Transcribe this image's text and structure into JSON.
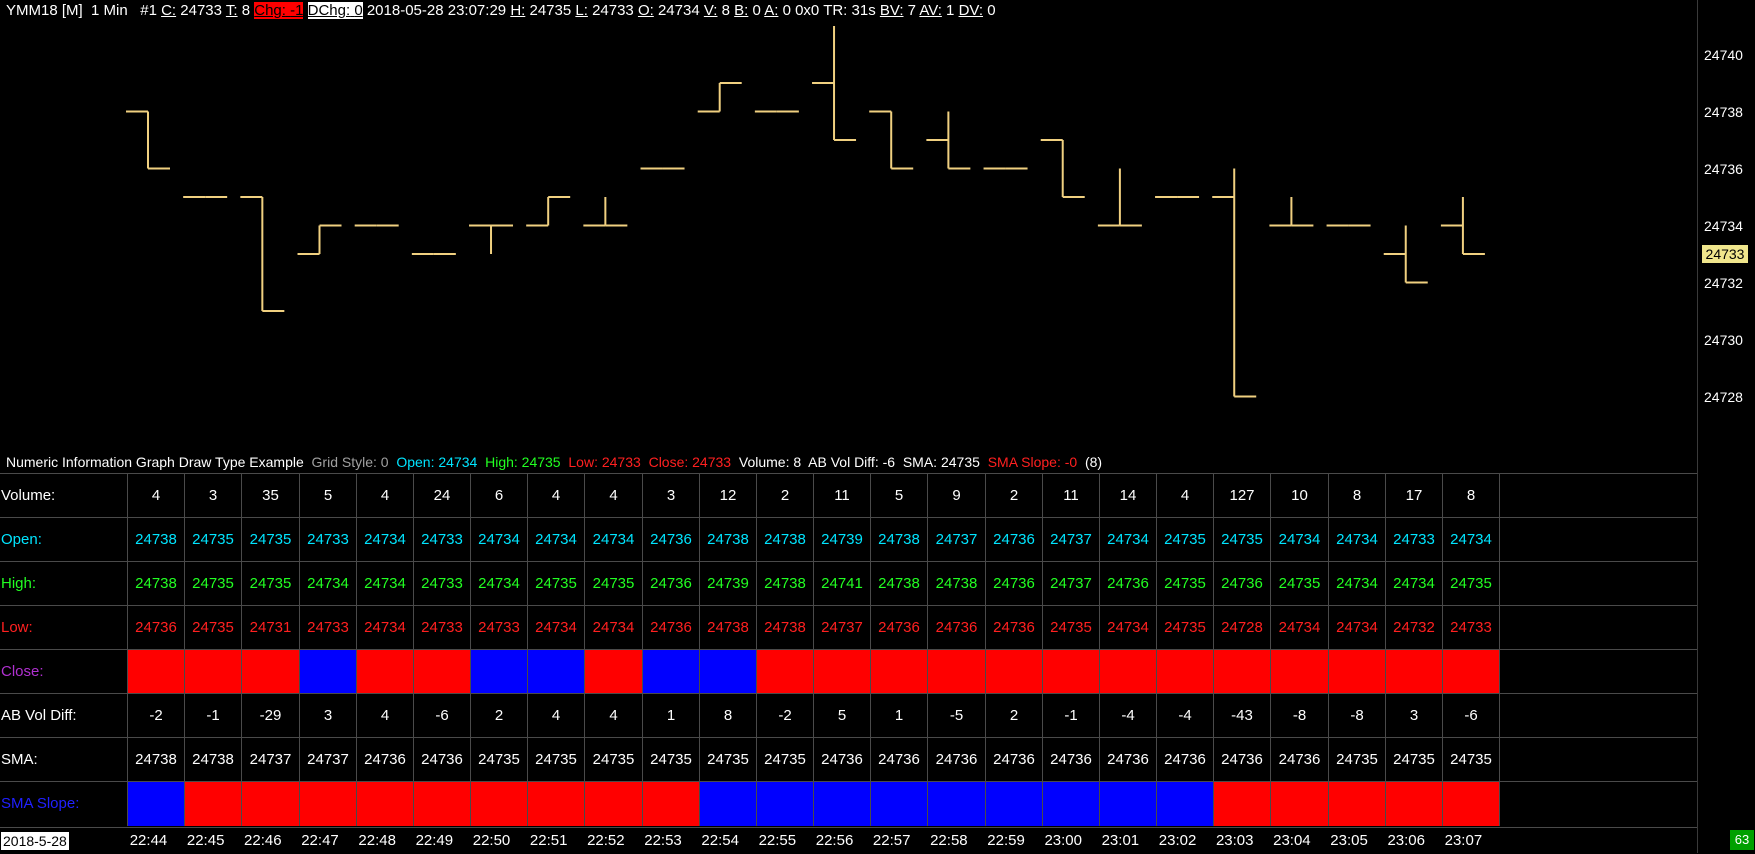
{
  "header": {
    "symbol": "YMM18 [M]",
    "interval": "1 Min",
    "chart_num": "#1",
    "c_label": "C:",
    "c_value": "24733",
    "t_label": "T:",
    "t_value": "8",
    "chg_label": "Chg:",
    "chg_value": "-1",
    "dchg_label": "DChg:",
    "dchg_value": "0",
    "datetime": "2018-05-28 23:07:29",
    "h_label": "H:",
    "h_value": "24735",
    "l_label": "L:",
    "l_value": "24733",
    "o_label": "O:",
    "o_value": "24734",
    "v_label": "V:",
    "v_value": "8",
    "b_label": "B:",
    "b_value": "0",
    "a_label": "A:",
    "a_value": "0",
    "size": "0x0",
    "tr": "TR: 31s",
    "bv_label": "BV:",
    "bv_value": "7",
    "av_label": "AV:",
    "av_value": "1",
    "dv_label": "DV:",
    "dv_value": "0"
  },
  "price_axis": {
    "ticks": [
      "24740",
      "24738",
      "24736",
      "24734",
      "24732",
      "24730",
      "24728"
    ],
    "last_price": "24733",
    "last_price_color": "#f0e68c"
  },
  "study_title": {
    "name": "Numeric Information Graph Draw Type Example",
    "grid_style": "Grid Style: 0",
    "open": "Open: 24734",
    "high": "High: 24735",
    "low": "Low: 24733",
    "close": "Close: 24733",
    "volume": "Volume: 8",
    "ab_vol_diff": "AB Vol Diff: -6",
    "sma": "SMA: 24735",
    "sma_slope": "SMA Slope: -0",
    "count": "(8)"
  },
  "colors": {
    "bar": "#f0d080",
    "open": "#00e5ff",
    "high": "#22ff22",
    "low": "#ff2020",
    "close_label": "#b030d0",
    "slope_label": "#2020ff",
    "up": "#0000ff",
    "down": "#ff0000"
  },
  "rows": {
    "volume_label": "Volume:",
    "open_label": "Open:",
    "high_label": "High:",
    "low_label": "Low:",
    "close_label": "Close:",
    "abvol_label": "AB Vol Diff:",
    "sma_label": "SMA:",
    "slope_label": "SMA Slope:"
  },
  "chart_data": {
    "type": "ohlc",
    "ylim": [
      24727.5,
      24741.5
    ],
    "times": [
      "22:44",
      "22:45",
      "22:46",
      "22:47",
      "22:48",
      "22:49",
      "22:50",
      "22:51",
      "22:52",
      "22:53",
      "22:54",
      "22:55",
      "22:56",
      "22:57",
      "22:58",
      "22:59",
      "23:00",
      "23:01",
      "23:02",
      "23:03",
      "23:04",
      "23:05",
      "23:06",
      "23:07"
    ],
    "volume": [
      "4",
      "3",
      "35",
      "5",
      "4",
      "24",
      "6",
      "4",
      "4",
      "3",
      "12",
      "2",
      "11",
      "5",
      "9",
      "2",
      "11",
      "14",
      "4",
      "127",
      "10",
      "8",
      "17",
      "8"
    ],
    "open": [
      24738,
      24735,
      24735,
      24733,
      24734,
      24733,
      24734,
      24734,
      24734,
      24736,
      24738,
      24738,
      24739,
      24738,
      24737,
      24736,
      24737,
      24734,
      24735,
      24735,
      24734,
      24734,
      24733,
      24734
    ],
    "high": [
      24738,
      24735,
      24735,
      24734,
      24734,
      24733,
      24734,
      24735,
      24735,
      24736,
      24739,
      24738,
      24741,
      24738,
      24738,
      24736,
      24737,
      24736,
      24735,
      24736,
      24735,
      24734,
      24734,
      24735
    ],
    "low": [
      24736,
      24735,
      24731,
      24733,
      24734,
      24733,
      24733,
      24734,
      24734,
      24736,
      24738,
      24738,
      24737,
      24736,
      24736,
      24736,
      24735,
      24734,
      24735,
      24728,
      24734,
      24734,
      24732,
      24733
    ],
    "close_state": [
      "down",
      "down",
      "down",
      "up",
      "down",
      "down",
      "up",
      "up",
      "down",
      "up",
      "up",
      "down",
      "down",
      "down",
      "down",
      "down",
      "down",
      "down",
      "down",
      "down",
      "down",
      "down",
      "down",
      "down"
    ],
    "ab_vol_diff": [
      "-2",
      "-1",
      "-29",
      "3",
      "4",
      "-6",
      "2",
      "4",
      "4",
      "1",
      "8",
      "-2",
      "5",
      "1",
      "-5",
      "2",
      "-1",
      "-4",
      "-4",
      "-43",
      "-8",
      "-8",
      "3",
      "-6"
    ],
    "sma": [
      "24738",
      "24738",
      "24737",
      "24737",
      "24736",
      "24736",
      "24735",
      "24735",
      "24735",
      "24735",
      "24735",
      "24735",
      "24736",
      "24736",
      "24736",
      "24736",
      "24736",
      "24736",
      "24736",
      "24736",
      "24736",
      "24735",
      "24735",
      "24735"
    ],
    "sma_slope_state": [
      "up",
      "down",
      "down",
      "down",
      "down",
      "down",
      "down",
      "down",
      "down",
      "down",
      "up",
      "up",
      "up",
      "up",
      "up",
      "up",
      "up",
      "up",
      "up",
      "down",
      "down",
      "down",
      "down",
      "down"
    ]
  },
  "time_axis": {
    "date": "2018-5-28",
    "badge": "63"
  }
}
